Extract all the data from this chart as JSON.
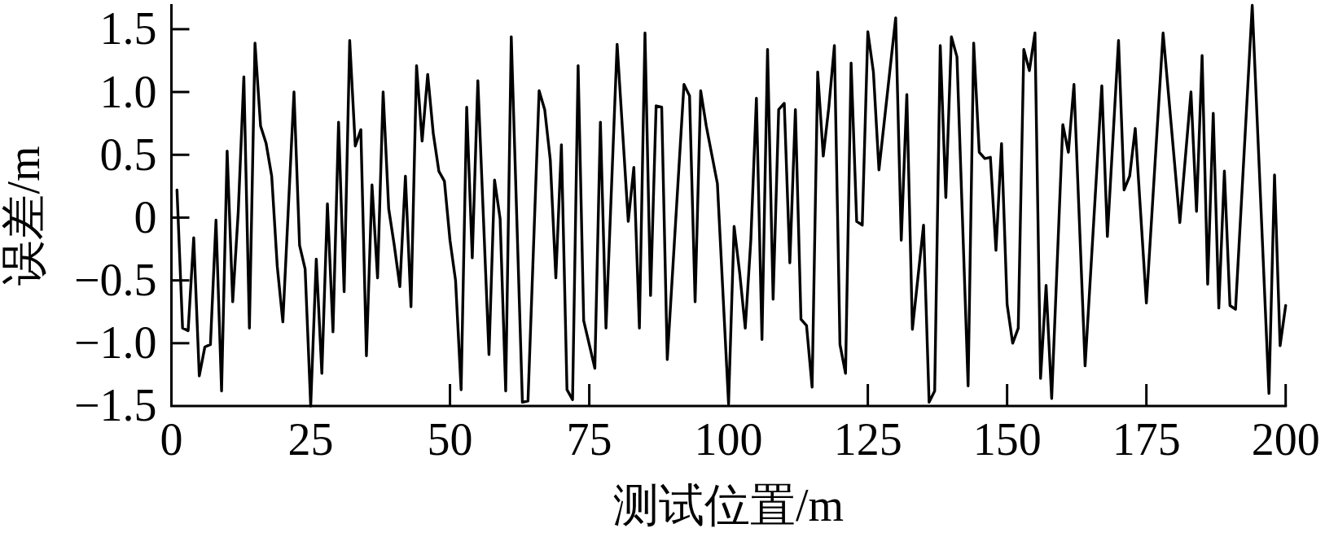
{
  "chart_data": {
    "type": "line",
    "xlabel": "测试位置/m",
    "ylabel": "误差/m",
    "series": [
      {
        "color": "#000000",
        "x": [
          1,
          2,
          3,
          4,
          5,
          6,
          7,
          8,
          9,
          10,
          11,
          12,
          13,
          14,
          15,
          16,
          17,
          18,
          19,
          20,
          22,
          23,
          24,
          25,
          26,
          27,
          28,
          29,
          30,
          31,
          32,
          33,
          34,
          35,
          36,
          37,
          38,
          39,
          40,
          41,
          42,
          43,
          44,
          45,
          46,
          47,
          48,
          49,
          50,
          51,
          52,
          53,
          54,
          55,
          57,
          58,
          59,
          60,
          61,
          63,
          64,
          66,
          67,
          68,
          69,
          70,
          71,
          72,
          73,
          74,
          76,
          77,
          78,
          80,
          82,
          83,
          84,
          85,
          86,
          87,
          88,
          89,
          92,
          93,
          94,
          95,
          96,
          97,
          98,
          100,
          101,
          102,
          103,
          104,
          105,
          106,
          107,
          108,
          109,
          110,
          111,
          112,
          113,
          114,
          115,
          116,
          117,
          118,
          119,
          120,
          121,
          122,
          123,
          124,
          125,
          126,
          127,
          130,
          131,
          132,
          133,
          135,
          136,
          137,
          138,
          139,
          140,
          141,
          143,
          144,
          145,
          146,
          147,
          148,
          149,
          150,
          151,
          152,
          153,
          154,
          155,
          156,
          157,
          158,
          160,
          161,
          162,
          164,
          167,
          168,
          170,
          171,
          172,
          173,
          175,
          178,
          181,
          183,
          184,
          185,
          186,
          187,
          188,
          189,
          190,
          191,
          194,
          197,
          198,
          199,
          200
        ],
        "values": [
          0.22,
          -0.88,
          -0.9,
          -0.16,
          -1.26,
          -1.03,
          -1.01,
          -0.02,
          -1.38,
          0.53,
          -0.67,
          0.05,
          1.12,
          -0.88,
          1.39,
          0.73,
          0.59,
          0.33,
          -0.39,
          -0.83,
          1.0,
          -0.22,
          -0.41,
          -1.5,
          -0.33,
          -1.24,
          0.11,
          -0.91,
          0.76,
          -0.59,
          1.41,
          0.57,
          0.7,
          -1.1,
          0.26,
          -0.48,
          1.0,
          0.07,
          -0.22,
          -0.55,
          0.33,
          -0.71,
          1.21,
          0.61,
          1.14,
          0.67,
          0.37,
          0.29,
          -0.18,
          -0.5,
          -1.37,
          0.88,
          -0.32,
          1.09,
          -1.09,
          0.3,
          -0.01,
          -1.38,
          1.44,
          -1.47,
          -1.46,
          1.01,
          0.86,
          0.46,
          -0.48,
          0.58,
          -1.37,
          -1.45,
          1.21,
          -0.82,
          -1.2,
          0.76,
          -0.88,
          1.38,
          -0.03,
          0.4,
          -0.88,
          1.47,
          -0.62,
          0.89,
          0.88,
          -1.13,
          1.06,
          0.97,
          -0.67,
          1.01,
          0.73,
          0.5,
          0.27,
          -1.48,
          -0.07,
          -0.44,
          -0.88,
          -0.18,
          0.95,
          -0.97,
          1.34,
          -0.65,
          0.86,
          0.91,
          -0.36,
          0.86,
          -0.81,
          -0.86,
          -1.35,
          1.16,
          0.49,
          0.88,
          1.37,
          -1.01,
          -1.24,
          1.23,
          -0.03,
          -0.06,
          1.48,
          1.16,
          0.38,
          1.59,
          -0.18,
          0.98,
          -0.89,
          -0.06,
          -1.47,
          -1.38,
          1.37,
          0.16,
          1.44,
          1.28,
          -1.34,
          1.39,
          0.52,
          0.47,
          0.48,
          -0.26,
          0.59,
          -0.69,
          -1.0,
          -0.88,
          1.34,
          1.17,
          1.47,
          -1.28,
          -0.54,
          -1.44,
          0.74,
          0.52,
          1.06,
          -1.18,
          1.05,
          -0.15,
          1.41,
          0.22,
          0.33,
          0.71,
          -0.68,
          1.47,
          -0.04,
          1.0,
          0.05,
          1.29,
          -0.53,
          0.83,
          -0.72,
          0.37,
          -0.7,
          -0.73,
          1.69,
          -1.4,
          0.34,
          -1.02,
          -0.7
        ]
      }
    ],
    "xlim": [
      0,
      200
    ],
    "ylim": [
      -1.5,
      1.7
    ],
    "xticks": [
      0,
      25,
      50,
      75,
      100,
      125,
      150,
      175,
      200
    ],
    "yticks": [
      {
        "value": -1.5,
        "label": "−1.5"
      },
      {
        "value": -1,
        "label": "−1.0"
      },
      {
        "value": -0.5,
        "label": "−0.5"
      },
      0,
      0.5,
      {
        "value": 1,
        "label": "1.0"
      },
      1.5
    ]
  }
}
